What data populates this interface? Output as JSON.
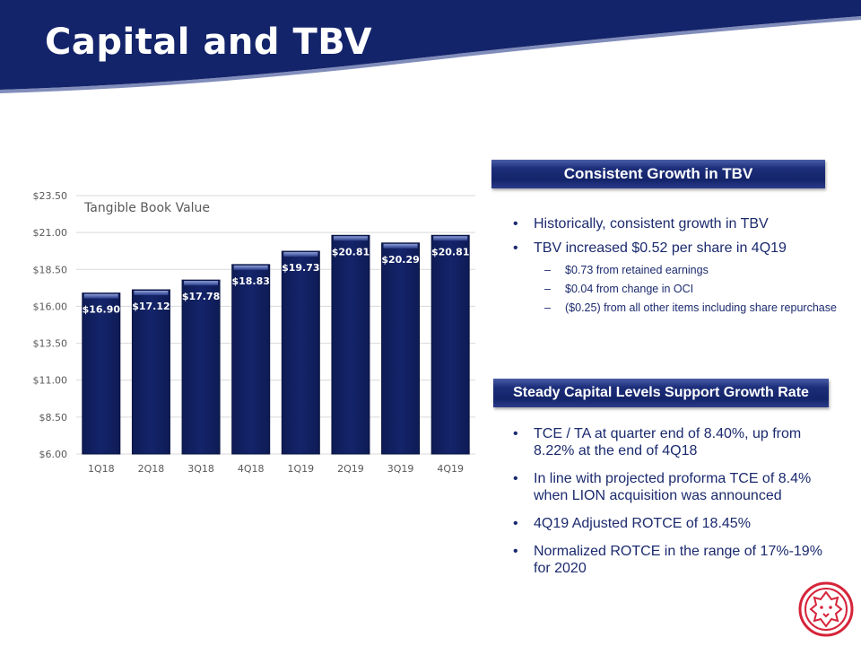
{
  "header": {
    "title": "Capital and TBV"
  },
  "chart_data": {
    "type": "bar",
    "title": "Tangible Book Value",
    "categories": [
      "1Q18",
      "2Q18",
      "3Q18",
      "4Q18",
      "1Q19",
      "2Q19",
      "3Q19",
      "4Q19"
    ],
    "values": [
      16.9,
      17.12,
      17.78,
      18.83,
      19.73,
      20.81,
      20.29,
      20.81
    ],
    "data_labels": [
      "$16.90",
      "$17.12",
      "$17.78",
      "$18.83",
      "$19.73",
      "$20.81",
      "$20.29",
      "$20.81"
    ],
    "ylim": [
      6.0,
      23.5
    ],
    "yticks": [
      6.0,
      8.5,
      11.0,
      13.5,
      16.0,
      18.5,
      21.0,
      23.5
    ],
    "ytick_labels": [
      "$6.00",
      "$8.50",
      "$11.00",
      "$13.50",
      "$16.00",
      "$18.50",
      "$21.00",
      "$23.50"
    ],
    "grid": true,
    "bar_color": "#14246a"
  },
  "panel1": {
    "heading": "Consistent Growth in TBV",
    "bullets": [
      {
        "text": "Historically, consistent growth in TBV",
        "sub": []
      },
      {
        "text": "TBV increased $0.52 per share in 4Q19",
        "sub": [
          "$0.73 from retained earnings",
          "$0.04 from change in OCI",
          "($0.25) from all other items including share repurchase"
        ]
      }
    ]
  },
  "panel2": {
    "heading": "Steady Capital Levels Support Growth Rate",
    "bullets": [
      "TCE / TA at quarter end of 8.40%, up from 8.22% at the end of 4Q18",
      "In line with projected proforma TCE of 8.4% when LION acquisition was announced",
      "4Q19 Adjusted ROTCE of 18.45%",
      "Normalized ROTCE in the range of 17%-19% for 2020"
    ]
  },
  "colors": {
    "navy": "#14246a",
    "text": "#1b2a6e",
    "accent": "#d6243a"
  },
  "logo": {
    "icon": "lion-head-icon"
  }
}
